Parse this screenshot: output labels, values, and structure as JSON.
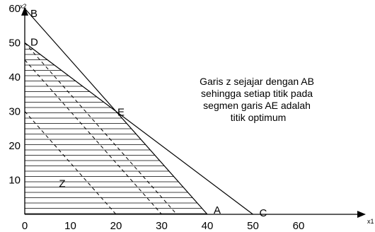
{
  "chart_data": {
    "type": "line",
    "xlabel": "x1",
    "ylabel": "x2",
    "xlim": [
      0,
      65
    ],
    "ylim": [
      0,
      65
    ],
    "x_ticks": [
      0,
      10,
      20,
      30,
      40,
      50,
      60
    ],
    "y_ticks": [
      10,
      20,
      30,
      40,
      50,
      60
    ],
    "lines": [
      {
        "from": "B",
        "to": "A",
        "points": [
          [
            0,
            60
          ],
          [
            40,
            0
          ]
        ]
      },
      {
        "from": "D",
        "to": "C",
        "points": [
          [
            0,
            50
          ],
          [
            50,
            0
          ]
        ]
      }
    ],
    "labeled_points": [
      {
        "label": "B",
        "x": 0,
        "y": 60
      },
      {
        "label": "D",
        "x": 0,
        "y": 50
      },
      {
        "label": "E",
        "x": 20,
        "y": 30
      },
      {
        "label": "A",
        "x": 40,
        "y": 0
      },
      {
        "label": "C",
        "x": 50,
        "y": 0
      }
    ],
    "feasible_region": [
      [
        0,
        0
      ],
      [
        0,
        50
      ],
      [
        20,
        30
      ],
      [
        40,
        0
      ]
    ],
    "z_lines": [
      [
        [
          0,
          30
        ],
        [
          20,
          0
        ]
      ],
      [
        [
          0,
          45
        ],
        [
          30,
          0
        ]
      ],
      [
        [
          0,
          50
        ],
        [
          33.3,
          0
        ]
      ]
    ],
    "z_label": "Z",
    "annotation": [
      "Garis z sejajar dengan AB",
      "sehingga setiap titik pada",
      "segmen garis AE adalah",
      "titik optimum"
    ]
  }
}
